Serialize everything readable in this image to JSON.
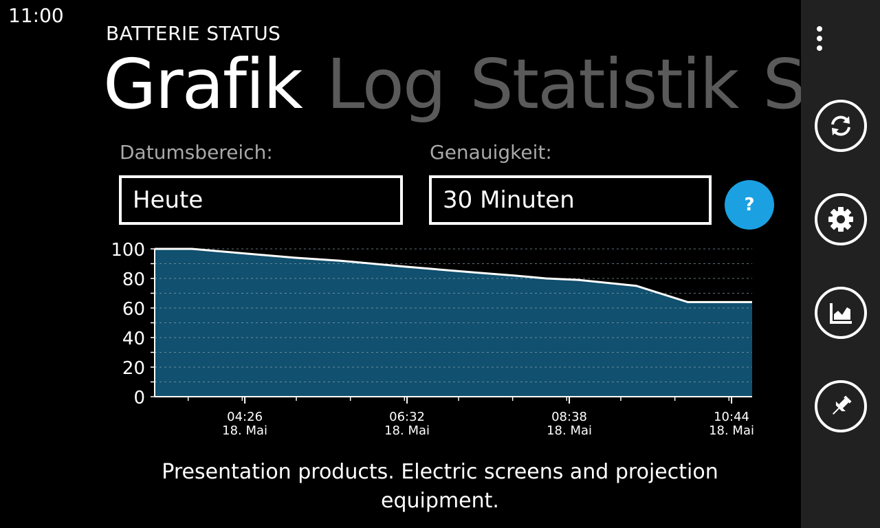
{
  "status_bar": {
    "time": "11:00"
  },
  "app": {
    "title": "BATTERIE STATUS"
  },
  "pivot": {
    "items": [
      {
        "label": "Grafik",
        "active": true
      },
      {
        "label": "Log",
        "active": false
      },
      {
        "label": "Statistik",
        "active": false
      },
      {
        "label": "S",
        "active": false
      }
    ]
  },
  "filters": {
    "date_range_label": "Datumsbereich:",
    "date_range_value": "Heute",
    "accuracy_label": "Genauigkeit:",
    "accuracy_value": "30 Minuten",
    "help_label": "?"
  },
  "chart_data": {
    "type": "area",
    "title": "",
    "xlabel": "",
    "ylabel": "",
    "ylim": [
      0,
      100
    ],
    "yticks": [
      0,
      20,
      40,
      60,
      80,
      100
    ],
    "xticks": [
      {
        "time": "04:26",
        "date": "18. Mai"
      },
      {
        "time": "06:32",
        "date": "18. Mai"
      },
      {
        "time": "08:38",
        "date": "18. Mai"
      },
      {
        "time": "10:44",
        "date": "18. Mai"
      }
    ],
    "x": [
      "03:16",
      "03:45",
      "04:25",
      "05:05",
      "05:40",
      "06:30",
      "07:25",
      "07:55",
      "08:20",
      "08:45",
      "09:30",
      "10:10",
      "11:00"
    ],
    "values": [
      100,
      100,
      97,
      94,
      92,
      88,
      84,
      82,
      80,
      79,
      75,
      64,
      64
    ],
    "grid": true,
    "fill_color": "#11506e",
    "line_color": "#ffffff"
  },
  "caption": "Presentation products. Electric screens and projection equipment.",
  "appbar": {
    "buttons": [
      {
        "name": "refresh-button",
        "icon": "refresh-icon"
      },
      {
        "name": "settings-button",
        "icon": "gear-icon"
      },
      {
        "name": "chart-button",
        "icon": "chart-icon"
      },
      {
        "name": "pin-button",
        "icon": "pin-icon"
      }
    ]
  }
}
